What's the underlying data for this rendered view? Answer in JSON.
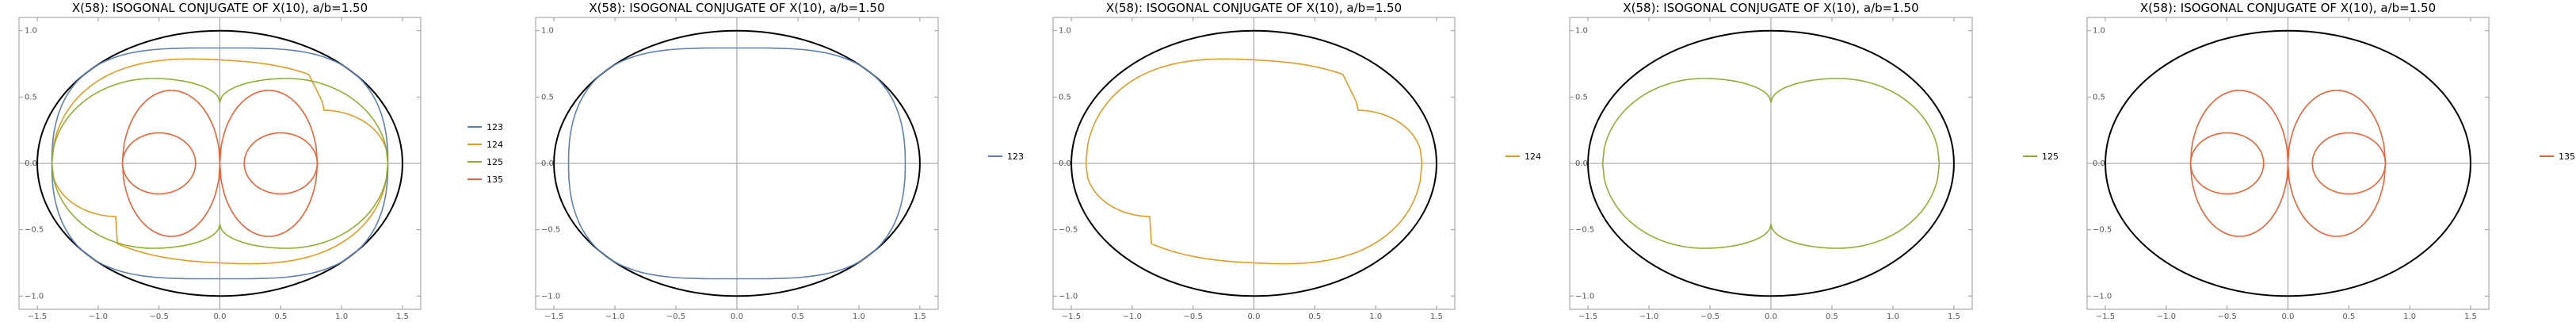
{
  "figure": {
    "panel_count": 5
  },
  "chart_data": [
    {
      "type": "line",
      "title": "X(58): ISOGONAL CONJUGATE OF X(10), a/b=1.50",
      "xlabel": "",
      "ylabel": "",
      "xlim": [
        -1.65,
        1.65
      ],
      "ylim": [
        -1.1,
        1.1
      ],
      "x_ticks": [
        -1.5,
        -1.0,
        -0.5,
        0.0,
        0.5,
        1.0,
        1.5
      ],
      "y_ticks": [
        -1.0,
        -0.5,
        0.0,
        0.5,
        1.0
      ],
      "grid": false,
      "legend_position": "right",
      "ellipse": {
        "rx": 1.5,
        "ry": 1.0,
        "color": "#000000"
      },
      "series": [
        {
          "name": "123",
          "color": "#5E81B5",
          "shape": "oval",
          "params": {
            "a": 1.38,
            "b": 0.87
          }
        },
        {
          "name": "124",
          "color": "#E19C24",
          "shape": "kidney",
          "params": {
            "a": 1.38,
            "top": 0.78,
            "bottom": 0.75,
            "kx": 0.85,
            "ky": 0.38
          }
        },
        {
          "name": "125",
          "color": "#8FB032",
          "shape": "peanut",
          "params": {
            "a": 1.38,
            "bmax": 0.64,
            "xpeak": 0.55,
            "dip": 0.46
          }
        },
        {
          "name": "135",
          "color": "#EB6235",
          "shape": "figure8",
          "params": {
            "outerx": 0.8,
            "outerb": 0.55,
            "dip": 0.0,
            "innerx0": 0.2,
            "innerx1": 0.8,
            "innerb": 0.23
          }
        }
      ]
    },
    {
      "type": "line",
      "title": "X(58): ISOGONAL CONJUGATE OF X(10), a/b=1.50",
      "xlabel": "",
      "ylabel": "",
      "xlim": [
        -1.65,
        1.65
      ],
      "ylim": [
        -1.1,
        1.1
      ],
      "x_ticks": [
        -1.5,
        -1.0,
        -0.5,
        0.0,
        0.5,
        1.0,
        1.5
      ],
      "y_ticks": [
        -1.0,
        -0.5,
        0.0,
        0.5,
        1.0
      ],
      "grid": false,
      "legend_position": "right",
      "ellipse": {
        "rx": 1.5,
        "ry": 1.0,
        "color": "#000000"
      },
      "series": [
        {
          "name": "123",
          "color": "#5E81B5",
          "shape": "oval",
          "params": {
            "a": 1.38,
            "b": 0.87
          }
        }
      ]
    },
    {
      "type": "line",
      "title": "X(58): ISOGONAL CONJUGATE OF X(10), a/b=1.50",
      "xlabel": "",
      "ylabel": "",
      "xlim": [
        -1.65,
        1.65
      ],
      "ylim": [
        -1.1,
        1.1
      ],
      "x_ticks": [
        -1.5,
        -1.0,
        -0.5,
        0.0,
        0.5,
        1.0,
        1.5
      ],
      "y_ticks": [
        -1.0,
        -0.5,
        0.0,
        0.5,
        1.0
      ],
      "grid": false,
      "legend_position": "right",
      "ellipse": {
        "rx": 1.5,
        "ry": 1.0,
        "color": "#000000"
      },
      "series": [
        {
          "name": "124",
          "color": "#E19C24",
          "shape": "kidney",
          "params": {
            "a": 1.38,
            "top": 0.78,
            "bottom": 0.75,
            "kx": 0.85,
            "ky": 0.38
          }
        }
      ]
    },
    {
      "type": "line",
      "title": "X(58): ISOGONAL CONJUGATE OF X(10), a/b=1.50",
      "xlabel": "",
      "ylabel": "",
      "xlim": [
        -1.65,
        1.65
      ],
      "ylim": [
        -1.1,
        1.1
      ],
      "x_ticks": [
        -1.5,
        -1.0,
        -0.5,
        0.0,
        0.5,
        1.0,
        1.5
      ],
      "y_ticks": [
        -1.0,
        -0.5,
        0.0,
        0.5,
        1.0
      ],
      "grid": false,
      "legend_position": "right",
      "ellipse": {
        "rx": 1.5,
        "ry": 1.0,
        "color": "#000000"
      },
      "series": [
        {
          "name": "125",
          "color": "#8FB032",
          "shape": "peanut",
          "params": {
            "a": 1.38,
            "bmax": 0.64,
            "xpeak": 0.55,
            "dip": 0.46
          }
        }
      ]
    },
    {
      "type": "line",
      "title": "X(58): ISOGONAL CONJUGATE OF X(10), a/b=1.50",
      "xlabel": "",
      "ylabel": "",
      "xlim": [
        -1.65,
        1.65
      ],
      "ylim": [
        -1.1,
        1.1
      ],
      "x_ticks": [
        -1.5,
        -1.0,
        -0.5,
        0.0,
        0.5,
        1.0,
        1.5
      ],
      "y_ticks": [
        -1.0,
        -0.5,
        0.0,
        0.5,
        1.0
      ],
      "grid": false,
      "legend_position": "right",
      "ellipse": {
        "rx": 1.5,
        "ry": 1.0,
        "color": "#000000"
      },
      "series": [
        {
          "name": "135",
          "color": "#EB6235",
          "shape": "figure8",
          "params": {
            "outerx": 0.8,
            "outerb": 0.55,
            "dip": 0.0,
            "innerx0": 0.2,
            "innerx1": 0.8,
            "innerb": 0.23
          }
        }
      ]
    }
  ]
}
